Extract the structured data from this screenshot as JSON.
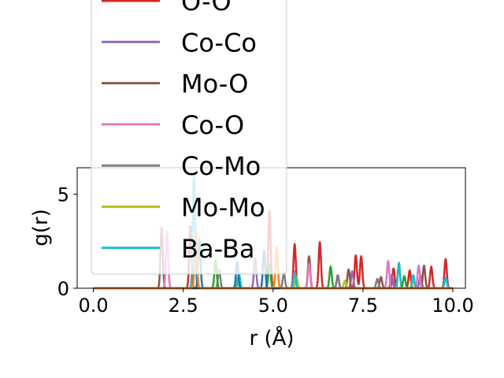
{
  "chart_data": {
    "type": "line",
    "xlabel": "r (Å)",
    "ylabel": "g(r)",
    "xlim": [
      -0.45,
      10.35
    ],
    "ylim": [
      0,
      6.4
    ],
    "xticks": [
      "0.0",
      "2.5",
      "5.0",
      "7.5",
      "10.0"
    ],
    "xtick_values": [
      0,
      2.5,
      5.0,
      7.5,
      10.0
    ],
    "yticks": [
      "0",
      "5"
    ],
    "ytick_values": [
      0,
      5
    ],
    "legend_position": "upper-center",
    "series": [
      {
        "name": "O-O",
        "color": "#d62728",
        "peaks": [
          [
            5.6,
            2.35
          ],
          [
            6.3,
            2.45
          ],
          [
            7.3,
            1.75
          ],
          [
            7.45,
            1.7
          ],
          [
            8.35,
            1.05
          ],
          [
            8.8,
            0.95
          ],
          [
            9.4,
            1.15
          ],
          [
            9.8,
            1.55
          ],
          [
            4.9,
            4.1
          ],
          [
            2.7,
            3.3
          ]
        ]
      },
      {
        "name": "Co-Co",
        "color": "#9467bd",
        "peaks": [
          [
            4.5,
            1.6
          ],
          [
            5.6,
            0.9
          ],
          [
            6.8,
            0.7
          ],
          [
            7.2,
            0.9
          ],
          [
            8.3,
            0.7
          ],
          [
            9.1,
            0.7
          ]
        ]
      },
      {
        "name": "Mo-O",
        "color": "#8c564b",
        "peaks": [
          [
            1.9,
            3.2
          ],
          [
            6.0,
            1.7
          ],
          [
            7.1,
            1.0
          ],
          [
            8.0,
            0.6
          ],
          [
            8.5,
            1.2
          ],
          [
            9.2,
            1.2
          ]
        ]
      },
      {
        "name": "Co-O",
        "color": "#e377c2",
        "peaks": [
          [
            2.05,
            3.0
          ],
          [
            6.0,
            1.3
          ],
          [
            8.2,
            1.45
          ],
          [
            9.05,
            1.2
          ]
        ]
      },
      {
        "name": "Co-Mo",
        "color": "#7f7f7f",
        "peaks": [
          [
            3.5,
            1.0
          ],
          [
            5.3,
            0.8
          ],
          [
            6.8,
            0.6
          ],
          [
            7.9,
            0.5
          ]
        ]
      },
      {
        "name": "Mo-Mo",
        "color": "#bcbd22",
        "peaks": [
          [
            4.0,
            0.5
          ],
          [
            5.65,
            0.6
          ],
          [
            7.0,
            0.4
          ],
          [
            8.9,
            0.4
          ]
        ]
      },
      {
        "name": "Ba-Ba",
        "color": "#17becf",
        "peaks": [
          [
            2.8,
            6.0
          ],
          [
            4.05,
            0.75
          ],
          [
            5.6,
            0.8
          ],
          [
            8.5,
            1.35
          ],
          [
            8.9,
            0.7
          ],
          [
            9.8,
            0.55
          ]
        ]
      },
      {
        "name": "",
        "color": "#2ca02c",
        "peaks": [
          [
            3.4,
            1.5
          ],
          [
            6.6,
            1.15
          ],
          [
            8.65,
            0.65
          ],
          [
            4.9,
            1.3
          ]
        ]
      },
      {
        "name": "",
        "color": "#1f77b4",
        "peaks": [
          [
            2.95,
            2.6
          ],
          [
            4.75,
            2.0
          ],
          [
            4.0,
            1.4
          ]
        ]
      },
      {
        "name": "",
        "color": "#ff7f0e",
        "peaks": [
          [
            2.85,
            3.0
          ],
          [
            5.1,
            2.2
          ]
        ]
      }
    ],
    "legend": [
      {
        "label": "O-O",
        "color": "#d62728"
      },
      {
        "label": "Co-Co",
        "color": "#9467bd"
      },
      {
        "label": "Mo-O",
        "color": "#8c564b"
      },
      {
        "label": "Co-O",
        "color": "#e377c2"
      },
      {
        "label": "Co-Mo",
        "color": "#7f7f7f"
      },
      {
        "label": "Mo-Mo",
        "color": "#bcbd22"
      },
      {
        "label": "Ba-Ba",
        "color": "#17becf"
      }
    ]
  }
}
